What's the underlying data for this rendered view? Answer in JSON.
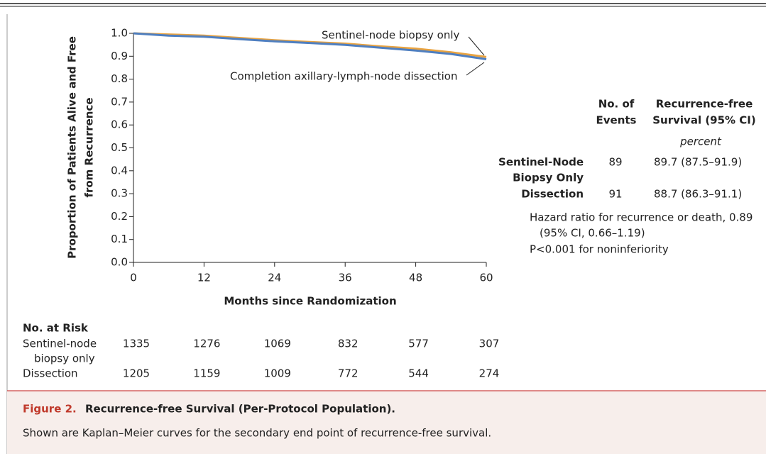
{
  "chart_data": {
    "type": "line",
    "ylabel": [
      "Proportion of Patients Alive and Free",
      "from Recurrence"
    ],
    "xlabel": "Months since Randomization",
    "xlim": [
      0,
      60
    ],
    "xticks": [
      0,
      12,
      24,
      36,
      48,
      60
    ],
    "ylim": [
      0,
      1
    ],
    "yticks": [
      {
        "value": 0,
        "label": "0.0"
      },
      0.1,
      0.2,
      0.3,
      0.4,
      0.5,
      0.6,
      0.7,
      0.8,
      0.9,
      {
        "value": 1,
        "label": "1.0"
      }
    ],
    "x": [
      0,
      6,
      12,
      18,
      24,
      30,
      36,
      42,
      48,
      54,
      60
    ],
    "series": [
      {
        "name": "Sentinel-node biopsy only",
        "color": "#e9a340",
        "values": [
          1.0,
          0.995,
          0.99,
          0.98,
          0.97,
          0.962,
          0.955,
          0.943,
          0.933,
          0.917,
          0.897
        ]
      },
      {
        "name": "Completion axillary-lymph-node dissection",
        "color": "#4f7fc0",
        "values": [
          1.0,
          0.99,
          0.985,
          0.975,
          0.965,
          0.958,
          0.95,
          0.937,
          0.925,
          0.91,
          0.887
        ]
      }
    ],
    "at_risk": {
      "title": "No. at Risk",
      "rows": [
        {
          "label": [
            "Sentinel-node",
            "biopsy only"
          ],
          "values": [
            1335,
            1276,
            1069,
            832,
            577,
            307
          ]
        },
        {
          "label": [
            "Dissection"
          ],
          "values": [
            1205,
            1159,
            1009,
            772,
            544,
            274
          ]
        }
      ]
    },
    "summary": {
      "headers": [
        [
          "No. of",
          "Events"
        ],
        [
          "Recurrence-free",
          "Survival (95% CI)"
        ]
      ],
      "unit": "percent",
      "rows": [
        {
          "label": [
            "Sentinel-Node",
            "Biopsy Only"
          ],
          "events": 89,
          "survival": "89.7 (87.5–91.9)"
        },
        {
          "label": [
            "Dissection"
          ],
          "events": 91,
          "survival": "88.7 (86.3–91.1)"
        }
      ],
      "notes": [
        "Hazard ratio for recurrence or death, 0.89",
        "(95% CI, 0.66–1.19)",
        "P<0.001 for noninferiority"
      ]
    },
    "caption": {
      "label": "Figure 2.",
      "title": "Recurrence-free Survival (Per-Protocol Population).",
      "text": "Shown are Kaplan–Meier curves for the secondary end point of recurrence-free survival."
    }
  }
}
